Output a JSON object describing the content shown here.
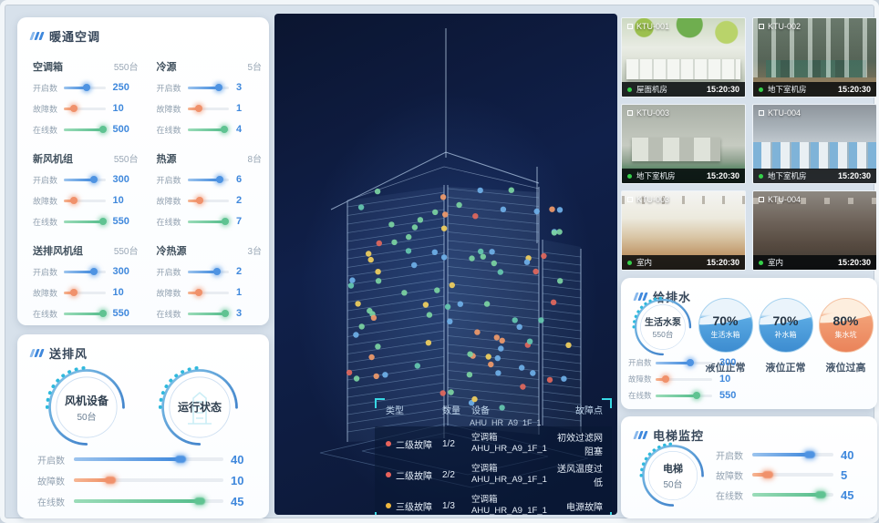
{
  "hvac": {
    "title": "暖通空调",
    "groups": [
      {
        "name": "空调箱",
        "count": "550台",
        "metrics": [
          {
            "label": "开启数",
            "value": "250",
            "pct": 55,
            "color": "blue"
          },
          {
            "label": "故障数",
            "value": "10",
            "pct": 24,
            "color": "orange"
          },
          {
            "label": "在线数",
            "value": "500",
            "pct": 95,
            "color": "green"
          }
        ]
      },
      {
        "name": "冷源",
        "count": "5台",
        "metrics": [
          {
            "label": "开启数",
            "value": "3",
            "pct": 75,
            "color": "blue"
          },
          {
            "label": "故障数",
            "value": "1",
            "pct": 28,
            "color": "orange"
          },
          {
            "label": "在线数",
            "value": "4",
            "pct": 90,
            "color": "green"
          }
        ]
      },
      {
        "name": "新风机组",
        "count": "550台",
        "metrics": [
          {
            "label": "开启数",
            "value": "300",
            "pct": 72,
            "color": "blue"
          },
          {
            "label": "故障数",
            "value": "10",
            "pct": 24,
            "color": "orange"
          },
          {
            "label": "在线数",
            "value": "550",
            "pct": 95,
            "color": "green"
          }
        ]
      },
      {
        "name": "热源",
        "count": "8台",
        "metrics": [
          {
            "label": "开启数",
            "value": "6",
            "pct": 78,
            "color": "blue"
          },
          {
            "label": "故障数",
            "value": "2",
            "pct": 30,
            "color": "orange"
          },
          {
            "label": "在线数",
            "value": "7",
            "pct": 92,
            "color": "green"
          }
        ]
      },
      {
        "name": "送排风机组",
        "count": "550台",
        "metrics": [
          {
            "label": "开启数",
            "value": "300",
            "pct": 72,
            "color": "blue"
          },
          {
            "label": "故障数",
            "value": "10",
            "pct": 24,
            "color": "orange"
          },
          {
            "label": "在线数",
            "value": "550",
            "pct": 95,
            "color": "green"
          }
        ]
      },
      {
        "name": "冷热源",
        "count": "3台",
        "metrics": [
          {
            "label": "开启数",
            "value": "2",
            "pct": 72,
            "color": "blue"
          },
          {
            "label": "故障数",
            "value": "1",
            "pct": 28,
            "color": "orange"
          },
          {
            "label": "在线数",
            "value": "3",
            "pct": 92,
            "color": "green"
          }
        ]
      }
    ]
  },
  "fan": {
    "title": "送排风",
    "gauges": [
      {
        "label": "风机设备",
        "count": "50台",
        "icon": ""
      },
      {
        "label": "运行状态",
        "count": "",
        "icon": "building"
      }
    ],
    "metrics": [
      {
        "label": "开启数",
        "value": "40",
        "pct": 72,
        "color": "blue"
      },
      {
        "label": "故障数",
        "value": "10",
        "pct": 25,
        "color": "orange"
      },
      {
        "label": "在线数",
        "value": "45",
        "pct": 85,
        "color": "green"
      }
    ]
  },
  "center": {
    "fault_table": {
      "headers": [
        "类型",
        "数量",
        "设备",
        "故障点"
      ],
      "partial_row": "AHU_HR_A9_1F_1",
      "rows": [
        {
          "severity": "二级故障",
          "dot": "red",
          "qty": "1/2",
          "device_type": "空调箱",
          "device_id": "AHU_HR_A9_1F_1",
          "fault": "初效过滤网阻塞"
        },
        {
          "severity": "二级故障",
          "dot": "red",
          "qty": "2/2",
          "device_type": "空调箱",
          "device_id": "AHU_HR_A9_1F_1",
          "fault": "送风温度过低"
        },
        {
          "severity": "三级故障",
          "dot": "yellow",
          "qty": "1/3",
          "device_type": "空调箱",
          "device_id": "AHU_HR_A9_1F_1",
          "fault": "电源故障"
        }
      ]
    }
  },
  "cameras": [
    {
      "id": "KTU-001",
      "location": "屋面机房",
      "time": "15:20:30",
      "scene": "rooftop"
    },
    {
      "id": "KTU-002",
      "location": "地下室机房",
      "time": "15:20:30",
      "scene": "pipes"
    },
    {
      "id": "KTU-003",
      "location": "地下室机房",
      "time": "15:20:30",
      "scene": "machines"
    },
    {
      "id": "KTU-004",
      "location": "地下室机房",
      "time": "15:20:30",
      "scene": "corridor"
    },
    {
      "id": "KTU-003",
      "location": "室内",
      "time": "15:20:30",
      "scene": "office-bright"
    },
    {
      "id": "KTU-004",
      "location": "室内",
      "time": "15:20:30",
      "scene": "office-dark"
    }
  ],
  "water": {
    "title": "给排水",
    "gauge": {
      "label": "生活水泵",
      "count": "550台"
    },
    "metrics": [
      {
        "label": "开启数",
        "value": "300",
        "pct": 62,
        "color": "blue"
      },
      {
        "label": "故障数",
        "value": "10",
        "pct": 18,
        "color": "orange"
      },
      {
        "label": "在线数",
        "value": "550",
        "pct": 72,
        "color": "green"
      }
    ],
    "tanks": [
      {
        "pct": "70%",
        "name": "生活水箱",
        "status": "液位正常",
        "color": "blue"
      },
      {
        "pct": "70%",
        "name": "补水箱",
        "status": "液位正常",
        "color": "blue"
      },
      {
        "pct": "80%",
        "name": "集水坑",
        "status": "液位过高",
        "color": "orange"
      }
    ]
  },
  "elevator": {
    "title": "电梯监控",
    "gauge": {
      "label": "电梯",
      "count": "50台"
    },
    "metrics": [
      {
        "label": "开启数",
        "value": "40",
        "pct": 72,
        "color": "blue"
      },
      {
        "label": "故障数",
        "value": "5",
        "pct": 20,
        "color": "orange"
      },
      {
        "label": "在线数",
        "value": "45",
        "pct": 85,
        "color": "green"
      }
    ]
  },
  "colors": {
    "accent_blue": "#3f88dc",
    "accent_orange": "#f0916b",
    "accent_green": "#5fc391",
    "cyan": "#38d8e4"
  }
}
